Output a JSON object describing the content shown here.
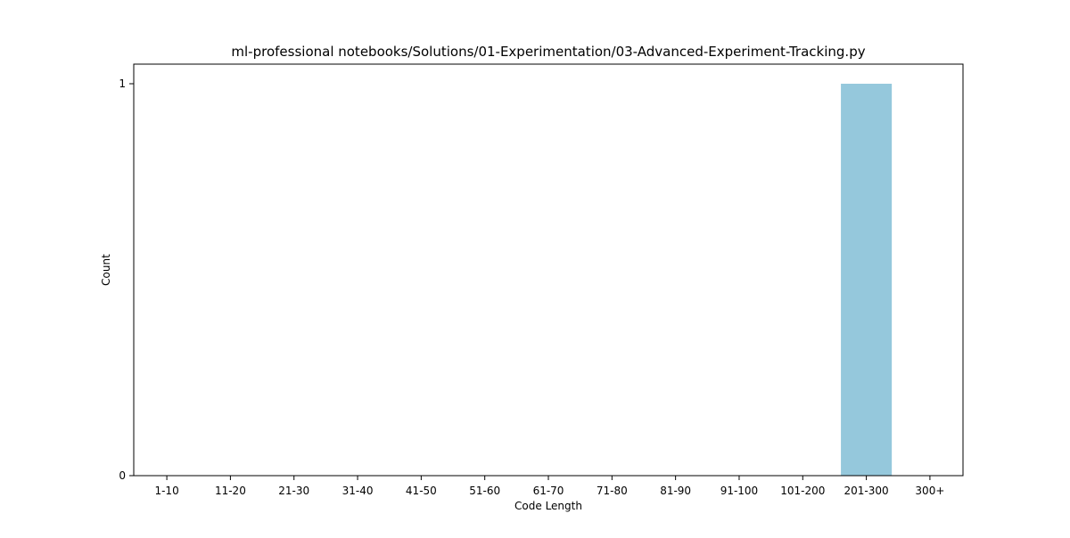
{
  "colors": {
    "bar": "#95c8dc",
    "axis": "#000000",
    "background": "#ffffff"
  },
  "chart_data": {
    "type": "bar",
    "title": "ml-professional notebooks/Solutions/01-Experimentation/03-Advanced-Experiment-Tracking.py",
    "xlabel": "Code Length",
    "ylabel": "Count",
    "categories": [
      "1-10",
      "11-20",
      "21-30",
      "31-40",
      "41-50",
      "51-60",
      "61-70",
      "71-80",
      "81-90",
      "91-100",
      "101-200",
      "201-300",
      "300+"
    ],
    "values": [
      0,
      0,
      0,
      0,
      0,
      0,
      0,
      0,
      0,
      0,
      0,
      1,
      0
    ],
    "ylim": [
      0,
      1.05
    ],
    "yticks": [
      0,
      1
    ],
    "grid": false,
    "legend": false
  }
}
